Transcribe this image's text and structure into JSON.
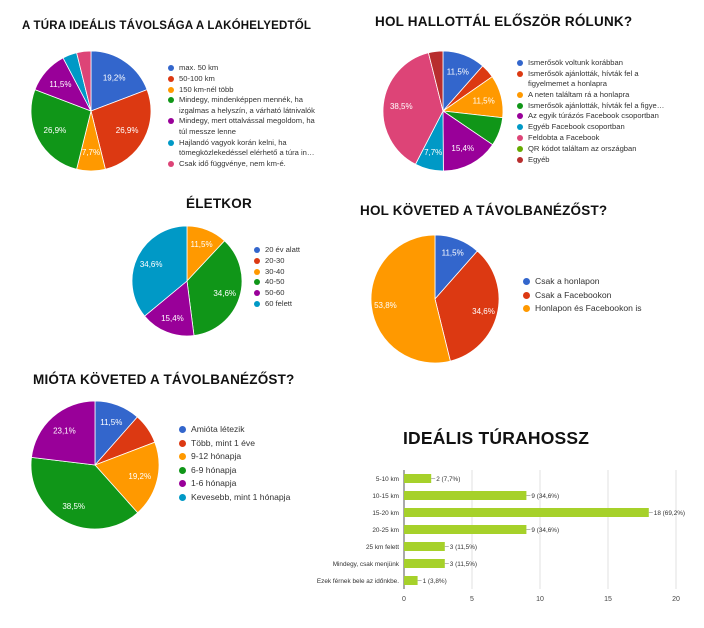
{
  "colors": {
    "blue": "#3366cc",
    "red": "#dc3912",
    "orange": "#ff9900",
    "green": "#109618",
    "purple": "#990099",
    "cyan": "#0099c6",
    "pink": "#dd4477",
    "lime": "#66aa00",
    "brown": "#b82e2e",
    "bar": "#a6d12a"
  },
  "chart_data": [
    {
      "type": "pie",
      "title": "A TÚRA IDEÁLIS TÁVOLSÁGA A LAKÓHELYEDTŐL",
      "legend_position": "right",
      "slices": [
        {
          "label": "max. 50 km",
          "value": 19.2,
          "display": "19,2%",
          "color": "blue"
        },
        {
          "label": "50-100 km",
          "value": 26.9,
          "display": "26,9%",
          "color": "red"
        },
        {
          "label": "150 km-nél több",
          "value": 7.7,
          "display": "7,7%",
          "color": "orange"
        },
        {
          "label": "Mindegy, mindenképpen mennék, ha izgalmas a helyszín, a várható látnivalók",
          "value": 26.9,
          "display": "26,9%",
          "color": "green"
        },
        {
          "label": "Mindegy, mert ottalvással megoldom, ha túl messze lenne",
          "value": 11.5,
          "display": "11,5%",
          "color": "purple"
        },
        {
          "label": "Hajlandó vagyok korán kelni, ha tömegközlekedéssel elérhető a túra in…",
          "value": 3.85,
          "display": "",
          "color": "cyan"
        },
        {
          "label": "Csak idő függvénye, nem km-é.",
          "value": 3.85,
          "display": "",
          "color": "pink"
        }
      ]
    },
    {
      "type": "pie",
      "title": "HOL HALLOTTÁL ELŐSZÖR RÓLUNK?",
      "legend_position": "right",
      "slices": [
        {
          "label": "Ismerősök voltunk korábban",
          "value": 11.5,
          "display": "11,5%",
          "color": "blue"
        },
        {
          "label": "Ismerősök ajánlották, hívták fel a figyelmemet a honlapra",
          "value": 3.8,
          "display": "",
          "color": "red"
        },
        {
          "label": "A neten találtam rá a honlapra",
          "value": 11.5,
          "display": "11,5%",
          "color": "orange"
        },
        {
          "label": "Ismerősök ajánlották, hívták fel a figye…",
          "value": 7.7,
          "display": "",
          "color": "green"
        },
        {
          "label": "Az egyik túrázós Facebook csoportban",
          "value": 15.4,
          "display": "15,4%",
          "color": "purple"
        },
        {
          "label": "Egyéb Facebook csoportban",
          "value": 7.7,
          "display": "7,7%",
          "color": "cyan"
        },
        {
          "label": "Feldobta a Facebook",
          "value": 38.5,
          "display": "38,5%",
          "color": "pink"
        },
        {
          "label": "QR kódot találtam az országban",
          "value": 0,
          "display": "",
          "color": "lime"
        },
        {
          "label": "Egyéb",
          "value": 3.9,
          "display": "",
          "color": "brown"
        }
      ]
    },
    {
      "type": "pie",
      "title": "ÉLETKOR",
      "legend_position": "right",
      "slices": [
        {
          "label": "20 év alatt",
          "value": 0,
          "display": "",
          "color": "blue"
        },
        {
          "label": "20-30",
          "value": 0,
          "display": "",
          "color": "red"
        },
        {
          "label": "30-40",
          "value": 11.5,
          "display": "11,5%",
          "color": "orange"
        },
        {
          "label": "40-50",
          "value": 34.6,
          "display": "34,6%",
          "color": "green"
        },
        {
          "label": "50-60",
          "value": 15.4,
          "display": "15,4%",
          "color": "purple"
        },
        {
          "label": "60 felett",
          "value": 34.6,
          "display": "34,6%",
          "color": "cyan"
        }
      ]
    },
    {
      "type": "pie",
      "title": "HOL KÖVETED A TÁVOLBANÉZŐST?",
      "legend_position": "right",
      "slices": [
        {
          "label": "Csak a honlapon",
          "value": 11.5,
          "display": "11,5%",
          "color": "blue"
        },
        {
          "label": "Csak a Facebookon",
          "value": 34.6,
          "display": "34,6%",
          "color": "red"
        },
        {
          "label": "Honlapon és Facebookon is",
          "value": 53.8,
          "display": "53,8%",
          "color": "orange"
        }
      ]
    },
    {
      "type": "pie",
      "title": "MIÓTA KÖVETED A TÁVOLBANÉZŐST?",
      "legend_position": "right",
      "slices": [
        {
          "label": "Amióta létezik",
          "value": 11.5,
          "display": "11,5%",
          "color": "blue"
        },
        {
          "label": "Több, mint 1 éve",
          "value": 7.7,
          "display": "",
          "color": "red"
        },
        {
          "label": "9-12 hónapja",
          "value": 19.2,
          "display": "19,2%",
          "color": "orange"
        },
        {
          "label": "6-9 hónapja",
          "value": 38.5,
          "display": "38,5%",
          "color": "green"
        },
        {
          "label": "1-6 hónapja",
          "value": 23.1,
          "display": "23,1%",
          "color": "purple"
        },
        {
          "label": "Kevesebb, mint 1 hónapja",
          "value": 0,
          "display": "",
          "color": "cyan"
        }
      ]
    },
    {
      "type": "bar",
      "orientation": "horizontal",
      "title": "IDEÁLIS TÚRAHOSSZ",
      "categories": [
        "5-10 km",
        "10-15 km",
        "15-20 km",
        "20-25 km",
        "25 km felett",
        "Mindegy, csak menjünk",
        "Ezek férnek bele az időnkbe."
      ],
      "values": [
        2,
        9,
        18,
        9,
        3,
        3,
        1
      ],
      "data_labels": [
        "2 (7,7%)",
        "9 (34,6%)",
        "18 (69,2%)",
        "9 (34,6%)",
        "3 (11,5%)",
        "3 (11,5%)",
        "1 (3,8%)"
      ],
      "xlim": [
        0,
        20
      ],
      "xticks": [
        "0",
        "5",
        "10",
        "15",
        "20"
      ],
      "grid": true,
      "color": "bar"
    }
  ]
}
